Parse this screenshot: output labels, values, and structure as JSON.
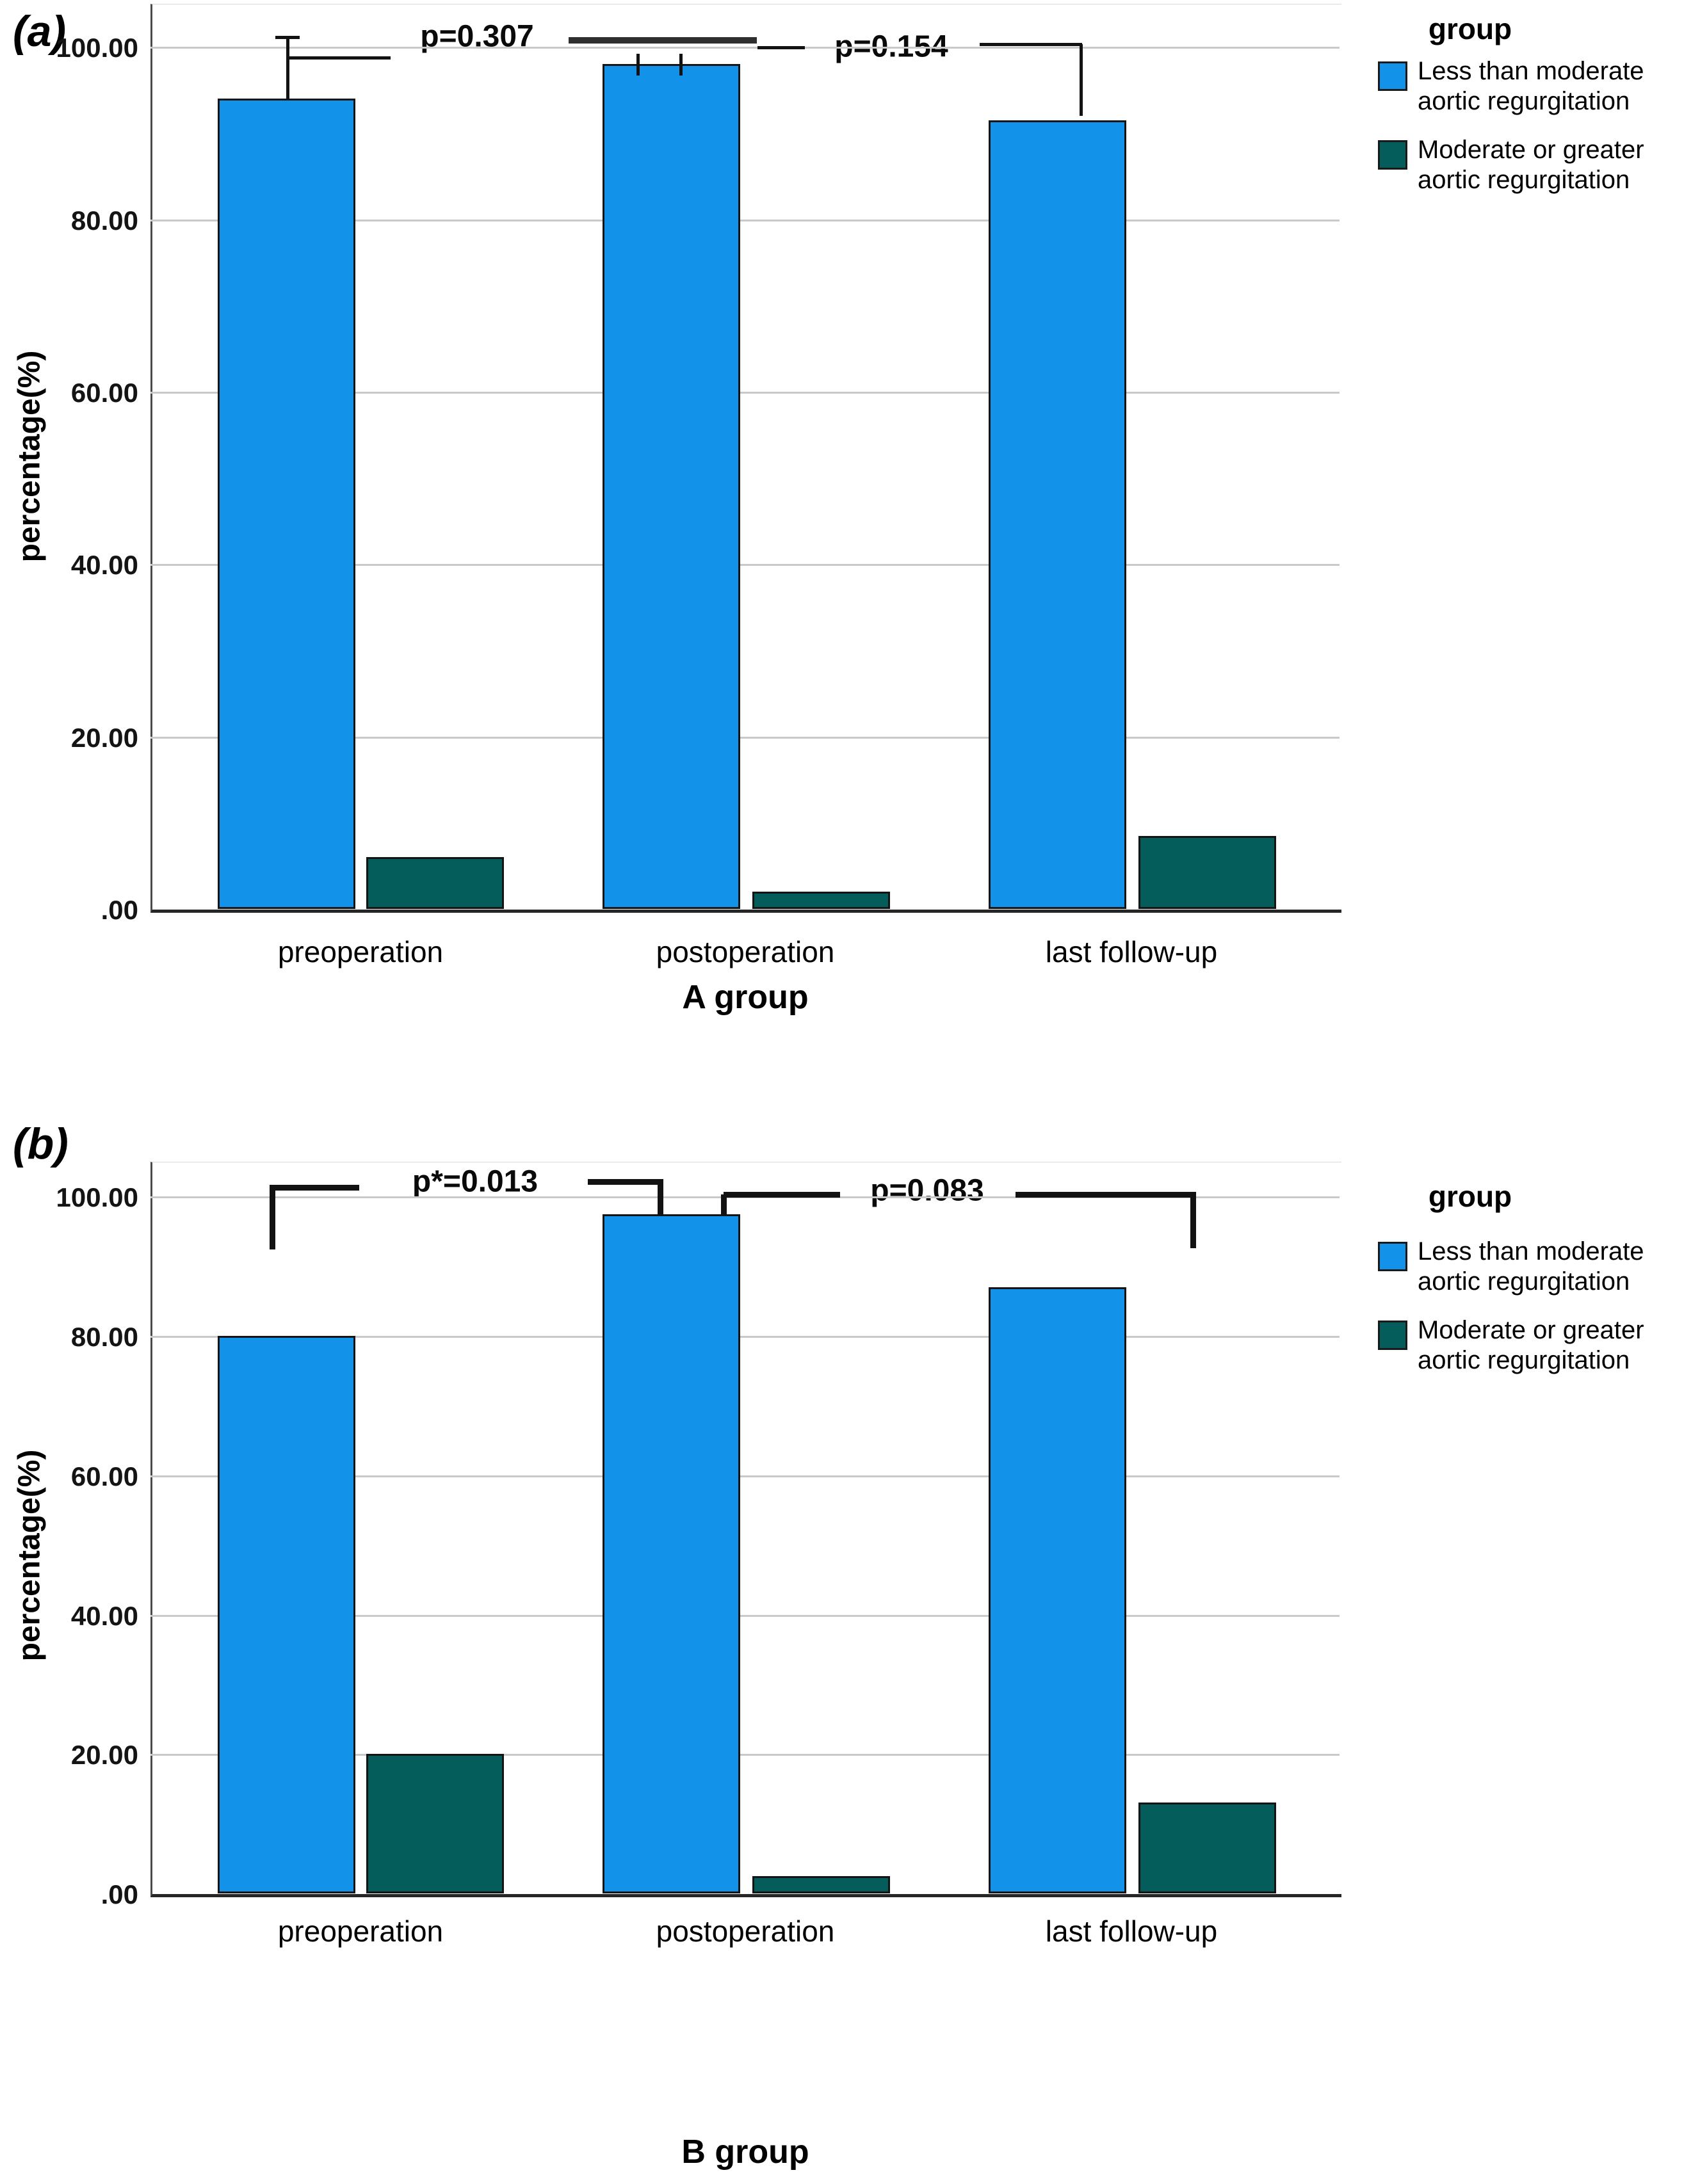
{
  "legend": {
    "title": "group",
    "items": [
      {
        "label": "Less than moderate aortic regurgitation",
        "color": "#1292E8"
      },
      {
        "label": "Moderate or greater aortic regurgitation",
        "color": "#045D5A"
      }
    ]
  },
  "colors": {
    "blue_series": "#1292E8",
    "teal_series": "#045D5A",
    "gridline": "#c9c9c9",
    "axis": "#262626"
  },
  "chart_data": [
    {
      "type": "bar",
      "panel": "(a)",
      "title": "",
      "categories": [
        "preoperation",
        "postoperation",
        "last follow-up"
      ],
      "series": [
        {
          "name": "Less than moderate aortic regurgitation",
          "values": [
            94,
            98,
            91.5
          ]
        },
        {
          "name": "Moderate or greater aortic regurgitation",
          "values": [
            6,
            2,
            8.5
          ]
        }
      ],
      "xlabel": "A group",
      "ylabel": "percentage(%)",
      "ylim": [
        0,
        105
      ],
      "ytick_values": [
        0,
        20,
        40,
        60,
        80,
        100
      ],
      "yticks": [
        ".00",
        "20.00",
        "40.00",
        "60.00",
        "80.00",
        "100.00"
      ],
      "grid": true,
      "legend_position": "top-right",
      "error_bars_upper_series1": [
        99.5,
        99.3,
        null
      ],
      "annotations": [
        {
          "text": "p=0.307",
          "between": [
            "preoperation",
            "postoperation"
          ]
        },
        {
          "text": "p=0.154",
          "between": [
            "postoperation",
            "last follow-up"
          ]
        }
      ]
    },
    {
      "type": "bar",
      "panel": "(b)",
      "title": "",
      "categories": [
        "preoperation",
        "postoperation",
        "last follow-up"
      ],
      "series": [
        {
          "name": "Less than moderate aortic regurgitation",
          "values": [
            80,
            97.5,
            87
          ]
        },
        {
          "name": "Moderate or greater aortic regurgitation",
          "values": [
            20,
            2.5,
            13
          ]
        }
      ],
      "xlabel": "B group",
      "ylabel": "percentage(%)",
      "ylim": [
        0,
        105
      ],
      "ytick_values": [
        0,
        20,
        40,
        60,
        80,
        100
      ],
      "yticks": [
        ".00",
        "20.00",
        "40.00",
        "60.00",
        "80.00",
        "100.00"
      ],
      "grid": true,
      "legend_position": "top-right",
      "annotations": [
        {
          "text": "p*=0.013",
          "between": [
            "preoperation",
            "postoperation"
          ]
        },
        {
          "text": "p=0.083",
          "between": [
            "postoperation",
            "last follow-up"
          ]
        }
      ]
    }
  ]
}
